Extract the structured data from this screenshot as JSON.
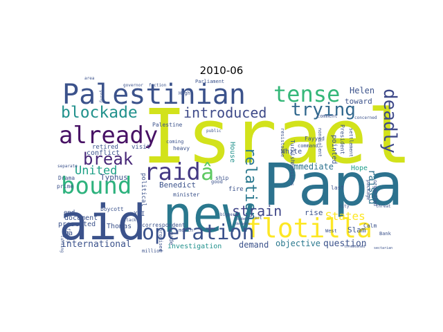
{
  "chart_data": {
    "type": "wordcloud",
    "title": "2010-06",
    "words": [
      {
        "text": "Israel",
        "weight": 100,
        "color": "#d2e21b"
      },
      {
        "text": "Papa",
        "weight": 85,
        "color": "#2c728e"
      },
      {
        "text": "new",
        "weight": 80,
        "color": "#2a788e"
      },
      {
        "text": "aid",
        "weight": 78,
        "color": "#3b528b"
      },
      {
        "text": "Palestinian",
        "weight": 55,
        "color": "#3b528b"
      },
      {
        "text": "flotilla",
        "weight": 45,
        "color": "#fde725"
      },
      {
        "text": "already",
        "weight": 42,
        "color": "#471164"
      },
      {
        "text": "bound",
        "weight": 42,
        "color": "#2db27d"
      },
      {
        "text": "raid",
        "weight": 40,
        "color": "#443983"
      },
      {
        "text": "operation",
        "weight": 38,
        "color": "#3b528b"
      },
      {
        "text": "tense",
        "weight": 36,
        "color": "#35b779"
      },
      {
        "text": "blockade",
        "weight": 34,
        "color": "#21918c"
      },
      {
        "text": "trying",
        "weight": 32,
        "color": "#31688e"
      },
      {
        "text": "introduced",
        "weight": 30,
        "color": "#3e4a89"
      },
      {
        "text": "deadly",
        "weight": 30,
        "color": "#3e4989"
      },
      {
        "text": "break",
        "weight": 30,
        "color": "#482878"
      },
      {
        "text": "â",
        "weight": 30,
        "color": "#5ec962"
      },
      {
        "text": "United",
        "weight": 24,
        "color": "#1fa187"
      },
      {
        "text": "relation",
        "weight": 24,
        "color": "#2a788e"
      },
      {
        "text": "strain",
        "weight": 22,
        "color": "#404688"
      },
      {
        "text": "States",
        "weight": 20,
        "color": "#fde725"
      },
      {
        "text": "raised",
        "weight": 18,
        "color": "#2c728e"
      },
      {
        "text": "international",
        "weight": 15,
        "color": "#3b528b"
      },
      {
        "text": "demand",
        "weight": 14,
        "color": "#3b528b"
      },
      {
        "text": "objective",
        "weight": 14,
        "color": "#2a788e"
      },
      {
        "text": "question",
        "weight": 14,
        "color": "#3b528b"
      },
      {
        "text": "immediate",
        "weight": 14,
        "color": "#2c728e"
      },
      {
        "text": "Helen",
        "weight": 13,
        "color": "#3b528b"
      },
      {
        "text": "toward",
        "weight": 13,
        "color": "#3b528b"
      },
      {
        "text": "Benedict",
        "weight": 12,
        "color": "#3b528b"
      },
      {
        "text": "Typhus",
        "weight": 12,
        "color": "#3b528b"
      },
      {
        "text": "conflict",
        "weight": 12,
        "color": "#3b528b"
      },
      {
        "text": "document",
        "weight": 12,
        "color": "#3b528b"
      },
      {
        "text": "presented",
        "weight": 12,
        "color": "#3b528b"
      },
      {
        "text": "retired",
        "weight": 12,
        "color": "#3b528b"
      },
      {
        "text": "visit",
        "weight": 12,
        "color": "#3b528b"
      },
      {
        "text": "rise",
        "weight": 12,
        "color": "#3b528b"
      },
      {
        "text": "Slam",
        "weight": 12,
        "color": "#3b528b"
      },
      {
        "text": "House",
        "weight": 12,
        "color": "#21918c"
      },
      {
        "text": "pointed",
        "weight": 12,
        "color": "#3b528b"
      },
      {
        "text": "investigation",
        "weight": 11,
        "color": "#21918c"
      },
      {
        "text": "Hope",
        "weight": 11,
        "color": "#1f9e89"
      },
      {
        "text": "Thomas",
        "weight": 11,
        "color": "#3b528b"
      },
      {
        "text": "XVI",
        "weight": 11,
        "color": "#3b528b"
      },
      {
        "text": "correspondent",
        "weight": 10,
        "color": "#3b528b"
      },
      {
        "text": "heavy",
        "weight": 10,
        "color": "#3b528b"
      },
      {
        "text": "coming",
        "weight": 10,
        "color": "#3b528b"
      },
      {
        "text": "political",
        "weight": 10,
        "color": "#3b528b"
      },
      {
        "text": "ship",
        "weight": 10,
        "color": "#3b528b"
      },
      {
        "text": "fire",
        "weight": 10,
        "color": "#3b528b"
      },
      {
        "text": "minister",
        "weight": 10,
        "color": "#3b528b"
      },
      {
        "text": "White",
        "weight": 10,
        "color": "#3b528b"
      },
      {
        "text": "end",
        "weight": 10,
        "color": "#3b528b"
      },
      {
        "text": "Calm",
        "weight": 9,
        "color": "#3b528b"
      },
      {
        "text": "Bank",
        "weight": 9,
        "color": "#3b528b"
      },
      {
        "text": "West",
        "weight": 9,
        "color": "#3b528b"
      },
      {
        "text": "last",
        "weight": 9,
        "color": "#3b528b"
      },
      {
        "text": "Fayyad",
        "weight": 9,
        "color": "#3b528b"
      },
      {
        "text": "Turkish",
        "weight": 9,
        "color": "#3b528b"
      },
      {
        "text": "resistance",
        "weight": 9,
        "color": "#3b528b"
      },
      {
        "text": "Palestine",
        "weight": 9,
        "color": "#3b528b"
      },
      {
        "text": "month",
        "weight": 9,
        "color": "#3b528b"
      },
      {
        "text": "million",
        "weight": 9,
        "color": "#3b528b"
      },
      {
        "text": "boycott",
        "weight": 9,
        "color": "#3b528b"
      },
      {
        "text": "Drama",
        "weight": 9,
        "color": "#3b528b"
      },
      {
        "text": "good",
        "weight": 9,
        "color": "#3b528b"
      },
      {
        "text": "settlement",
        "weight": 9,
        "color": "#3b528b"
      },
      {
        "text": "nonviolent",
        "weight": 9,
        "color": "#3b528b"
      },
      {
        "text": "President",
        "weight": 9,
        "color": "#3b528b"
      },
      {
        "text": "Pensions",
        "weight": 9,
        "color": "#3b528b"
      },
      {
        "text": "command",
        "weight": 8,
        "color": "#3b528b"
      },
      {
        "text": "organized",
        "weight": 8,
        "color": "#3b528b"
      },
      {
        "text": "package",
        "weight": 8,
        "color": "#3b528b"
      },
      {
        "text": "prime",
        "weight": 8,
        "color": "#3b528b"
      },
      {
        "text": "made",
        "weight": 8,
        "color": "#3b528b"
      },
      {
        "text": "promised",
        "weight": 8,
        "color": "#3b528b"
      },
      {
        "text": "Parliament",
        "weight": 7,
        "color": "#3b528b"
      },
      {
        "text": "High",
        "weight": 7,
        "color": "#3b528b"
      },
      {
        "text": "public",
        "weight": 7,
        "color": "#3b528b"
      },
      {
        "text": "comment",
        "weight": 7,
        "color": "#3b528b"
      },
      {
        "text": "concerned",
        "weight": 7,
        "color": "#3b528b"
      },
      {
        "text": "bigger",
        "weight": 7,
        "color": "#3b528b"
      },
      {
        "text": "threat",
        "weight": 7,
        "color": "#3b528b"
      },
      {
        "text": "decades",
        "weight": 7,
        "color": "#3b528b"
      },
      {
        "text": "separate",
        "weight": 7,
        "color": "#3b528b"
      },
      {
        "text": "turning",
        "weight": 7,
        "color": "#3b528b"
      },
      {
        "text": "family",
        "weight": 7,
        "color": "#3b528b"
      },
      {
        "text": "area",
        "weight": 6,
        "color": "#3b528b"
      },
      {
        "text": "going",
        "weight": 6,
        "color": "#3b528b"
      },
      {
        "text": "governor",
        "weight": 6,
        "color": "#3b528b"
      },
      {
        "text": "faction",
        "weight": 6,
        "color": "#3b528b"
      },
      {
        "text": "effort",
        "weight": 6,
        "color": "#3b528b"
      },
      {
        "text": "attack",
        "weight": 6,
        "color": "#3b528b"
      },
      {
        "text": "city",
        "weight": 6,
        "color": "#3b528b"
      },
      {
        "text": "number",
        "weight": 6,
        "color": "#3b528b"
      },
      {
        "text": "threatened",
        "weight": 6,
        "color": "#3b528b"
      },
      {
        "text": "sectarian",
        "weight": 6,
        "color": "#3b528b"
      },
      {
        "text": "ha",
        "weight": 9,
        "color": "#3b528b"
      }
    ]
  }
}
